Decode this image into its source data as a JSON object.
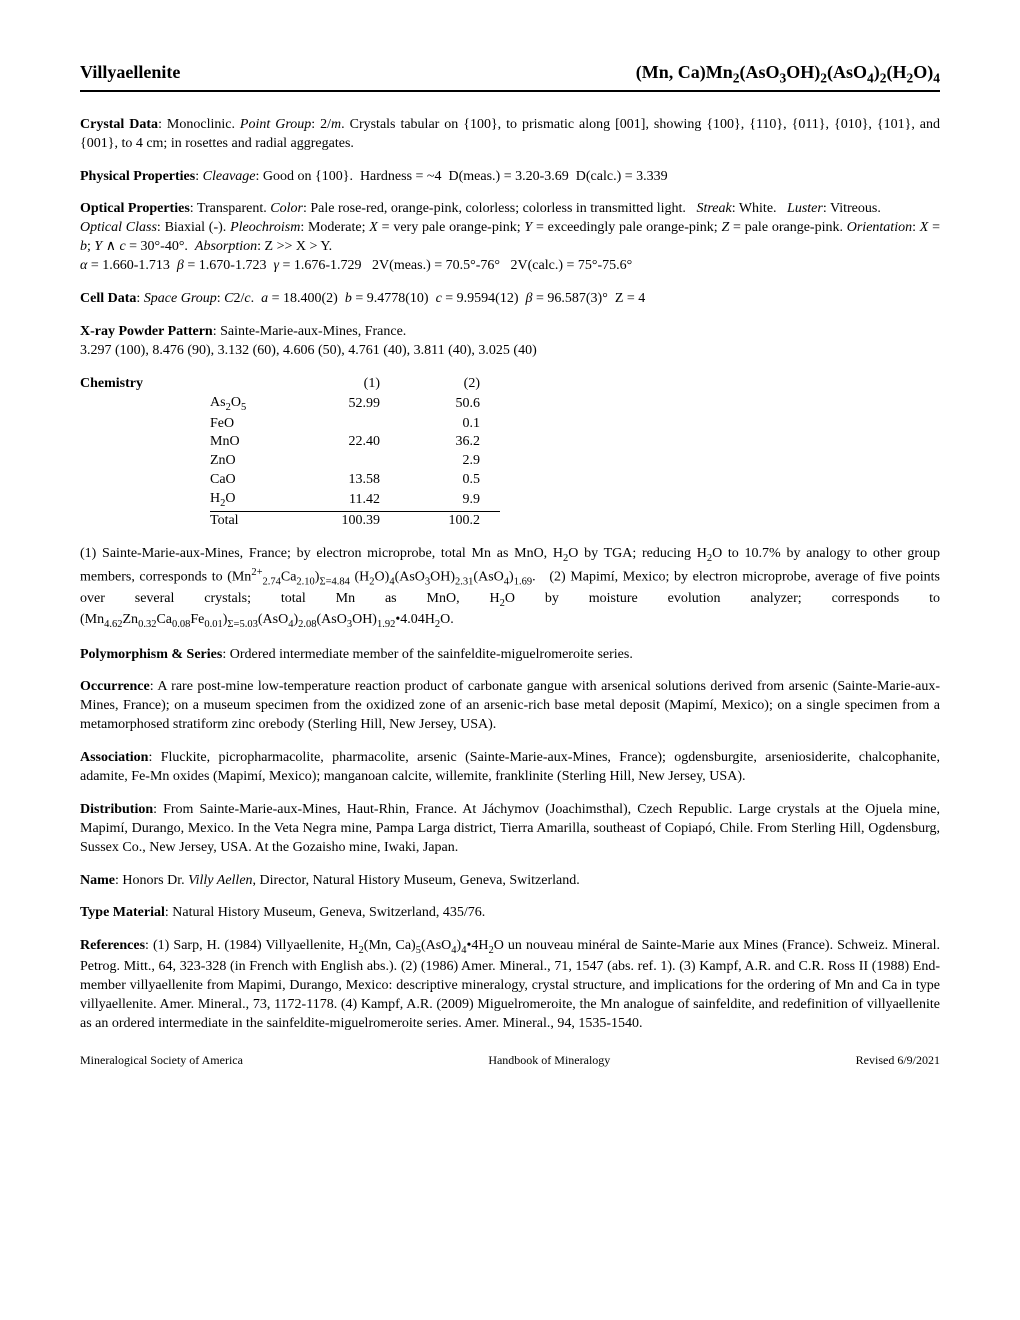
{
  "header": {
    "name": "Villyaellenite",
    "formula_html": "(Mn, Ca)Mn<sub>2</sub>(AsO<sub>3</sub>OH)<sub>2</sub>(AsO<sub>4</sub>)<sub>2</sub>(H<sub>2</sub>O)<sub>4</sub>"
  },
  "crystal_data": {
    "label": "Crystal Data",
    "text_html": ": Monoclinic. <span class=\"ital\">Point Group</span>: 2/<span class=\"ital\">m</span>. Crystals tabular on {100}, to prismatic along [001], showing {100}, {110}, {011}, {010}, {101}, and {001}, to 4 cm; in rosettes and radial aggregates."
  },
  "physical": {
    "label": "Physical Properties",
    "text_html": ": <span class=\"ital\">Cleavage</span>: Good on {100}.&nbsp;&nbsp;Hardness = ~4&nbsp;&nbsp;D(meas.) = 3.20-3.69&nbsp;&nbsp;D(calc.) = 3.339"
  },
  "optical": {
    "label": "Optical Properties",
    "text_html": ": Transparent. <span class=\"ital\">Color</span>: Pale rose-red, orange-pink, colorless; colorless in transmitted light.&nbsp;&nbsp;&nbsp;<span class=\"ital\">Streak</span>: White.&nbsp;&nbsp;&nbsp;<span class=\"ital\">Luster</span>: Vitreous.<br><span class=\"ital\">Optical Class</span>: Biaxial (-). <span class=\"ital\">Pleochroism</span>: Moderate; <span class=\"ital\">X</span> = very pale orange-pink; <span class=\"ital\">Y</span> = exceedingly pale orange-pink; <span class=\"ital\">Z</span> = pale orange-pink. <span class=\"ital\">Orientation</span>: <span class=\"ital\">X</span> = <span class=\"ital\">b</span>; <span class=\"ital\">Y</span> ∧ <span class=\"ital\">c</span> = 30°-40°.&nbsp;&nbsp;<span class=\"ital\">Absorption</span>: Z &gt;&gt; X &gt; Y.<br><span class=\"greek\">α</span> = 1.660-1.713&nbsp;&nbsp;<span class=\"greek\">β</span> = 1.670-1.723&nbsp;&nbsp;<span class=\"greek\">γ</span> = 1.676-1.729&nbsp;&nbsp;&nbsp;2V(meas.) = 70.5°-76°&nbsp;&nbsp;&nbsp;2V(calc.) = 75°-75.6°"
  },
  "cell": {
    "label": "Cell Data",
    "text_html": ": <span class=\"ital\">Space Group</span>: <span class=\"ital\">C</span>2/<span class=\"ital\">c</span>.&nbsp;&nbsp;<span class=\"ital\">a</span> = 18.400(2)&nbsp;&nbsp;<span class=\"ital\">b</span> = 9.4778(10)&nbsp;&nbsp;<span class=\"ital\">c</span> = 9.9594(12)&nbsp;&nbsp;<span class=\"greek\">β</span> = 96.587(3)°&nbsp;&nbsp;Z = 4"
  },
  "xray": {
    "label": "X-ray Powder Pattern",
    "text_html": ": Sainte-Marie-aux-Mines, France.<br>3.297 (100), 8.476 (90), 3.132 (60), 4.606 (50), 4.761 (40), 3.811 (40), 3.025 (40)"
  },
  "chemistry": {
    "label": "Chemistry",
    "col_headers": [
      "(1)",
      "(2)"
    ],
    "rows": [
      {
        "label_html": "As<sub>2</sub>O<sub>5</sub>",
        "c1": "52.99",
        "c2": "50.6"
      },
      {
        "label_html": "FeO",
        "c1": "",
        "c2": "0.1"
      },
      {
        "label_html": "MnO",
        "c1": "22.40",
        "c2": "36.2"
      },
      {
        "label_html": "ZnO",
        "c1": "",
        "c2": "2.9"
      },
      {
        "label_html": "CaO",
        "c1": "13.58",
        "c2": "0.5"
      },
      {
        "label_html": "H<sub>2</sub>O",
        "c1": "11.42",
        "c2": "9.9",
        "cls": "h2o"
      },
      {
        "label_html": "Total",
        "c1": "100.39",
        "c2": "100.2",
        "cls": "total"
      }
    ],
    "note_html": "(1) Sainte-Marie-aux-Mines, France; by electron microprobe, total Mn as MnO, H<sub>2</sub>O by TGA; reducing H<sub>2</sub>O to 10.7% by analogy to other group members, corresponds to (Mn<sup>2+</sup><sub>2.74</sub>Ca<sub>2.10</sub>)<sub>Σ=4.84</sub> (H<sub>2</sub>O)<sub>4</sub>(AsO<sub>3</sub>OH)<sub>2.31</sub>(AsO<sub>4</sub>)<sub>1.69</sub>.&nbsp;&nbsp;&nbsp;(2) Mapimí, Mexico; by electron microprobe, average of five points over several crystals; total Mn as MnO, H<sub>2</sub>O by moisture evolution analyzer; corresponds to (Mn<sub>4.62</sub>Zn<sub>0.32</sub>Ca<sub>0.08</sub>Fe<sub>0.01</sub>)<sub>Σ=5.03</sub>(AsO<sub>4</sub>)<sub>2.08</sub>(AsO<sub>3</sub>OH)<sub>1.92</sub>•4.04H<sub>2</sub>O."
  },
  "polymorphism": {
    "label": "Polymorphism & Series",
    "text_html": ": Ordered intermediate member of the sainfeldite-miguelromeroite series."
  },
  "occurrence": {
    "label": "Occurrence",
    "text_html": ": A rare post-mine low-temperature reaction product of carbonate gangue with arsenical solutions derived from arsenic (Sainte-Marie-aux-Mines, France); on a museum specimen from the oxidized zone of an arsenic-rich base metal deposit (Mapimí, Mexico); on a single specimen from a metamorphosed stratiform zinc orebody (Sterling Hill, New Jersey, USA)."
  },
  "association": {
    "label": "Association",
    "text_html": ": Fluckite, picropharmacolite, pharmacolite, arsenic (Sainte-Marie-aux-Mines, France); ogdensburgite, arseniosiderite, chalcophanite, adamite, Fe-Mn oxides (Mapimí, Mexico); manganoan calcite, willemite, franklinite (Sterling Hill, New Jersey, USA)."
  },
  "distribution": {
    "label": "Distribution",
    "text_html": ": From Sainte-Marie-aux-Mines, Haut-Rhin, France. At Jáchymov (Joachimsthal), Czech Republic. Large crystals at the Ojuela mine, Mapimí, Durango, Mexico. In the Veta Negra mine, Pampa Larga district, Tierra Amarilla, southeast of Copiapó, Chile. From Sterling Hill, Ogdensburg, Sussex Co., New Jersey, USA. At the Gozaisho mine, Iwaki, Japan."
  },
  "name_sec": {
    "label": "Name",
    "text_html": ": Honors Dr. <span class=\"ital\">Villy Aellen</span>, Director, Natural History Museum, Geneva, Switzerland."
  },
  "type_material": {
    "label": "Type Material",
    "text_html": ": Natural History Museum, Geneva, Switzerland, 435/76."
  },
  "references": {
    "label": "References",
    "text_html": ": (1) Sarp, H. (1984) Villyaellenite, H<sub>2</sub>(Mn, Ca)<sub>5</sub>(AsO<sub>4</sub>)<sub>4</sub>•4H<sub>2</sub>O un nouveau minéral de Sainte-Marie aux Mines (France). Schweiz. Mineral. Petrog. Mitt., 64, 323-328 (in French with English abs.). (2) (1986) Amer. Mineral., 71, 1547 (abs. ref. 1). (3) Kampf, A.R. and C.R. Ross II (1988) End-member villyaellenite from Mapimi, Durango, Mexico: descriptive mineralogy, crystal structure, and implications for the ordering of Mn and Ca in type villyaellenite. Amer. Mineral., 73, 1172-1178. (4) Kampf, A.R. (2009) Miguelromeroite, the Mn analogue of sainfeldite, and redefinition of villyaellenite as an ordered intermediate in the sainfeldite-miguelromeroite series. Amer. Mineral., 94, 1535-1540."
  },
  "footer": {
    "left": "Mineralogical Society of America",
    "center": "Handbook of Mineralogy",
    "right": "Revised 6/9/2021"
  }
}
